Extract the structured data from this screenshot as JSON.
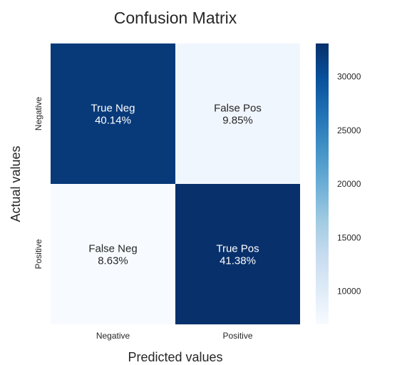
{
  "chart_data": {
    "type": "heatmap",
    "title": "Confusion Matrix",
    "xlabel": "Predicted values",
    "ylabel": "Actual values",
    "x_categories": [
      "Negative",
      "Positive"
    ],
    "y_categories": [
      "Negative",
      "Positive"
    ],
    "cells": [
      [
        {
          "name": "True Neg",
          "percent": "40.14%",
          "count": 32110
        },
        {
          "name": "False Pos",
          "percent": "9.85%",
          "count": 7880
        }
      ],
      [
        {
          "name": "False Neg",
          "percent": "8.63%",
          "count": 6905
        },
        {
          "name": "True Pos",
          "percent": "41.38%",
          "count": 33105
        }
      ]
    ],
    "colormap": "Blues",
    "colorbar": {
      "min": 6905,
      "max": 33105,
      "ticks": [
        10000,
        15000,
        20000,
        25000,
        30000
      ]
    },
    "colors": {
      "low": "#f7fbff",
      "mid_low": "#c6dbef",
      "mid": "#6baed6",
      "mid_high": "#2171b5",
      "high": "#08306b"
    }
  }
}
